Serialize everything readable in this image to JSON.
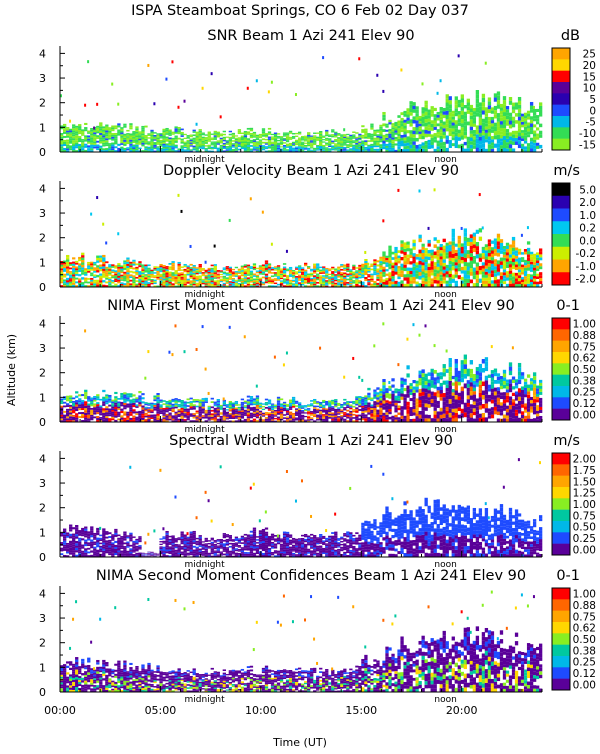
{
  "header": {
    "line1": "ISPA Steamboat Springs, CO    6 Feb 02 Day 037"
  },
  "y_axis_label": "Altitude (km)",
  "x_axis": {
    "label": "Time (UT)",
    "ticks": [
      "00:00",
      "05:00",
      "10:00",
      "15:00",
      "20:00"
    ],
    "tick_hours": [
      0,
      5,
      10,
      15,
      20
    ],
    "range_hours": [
      0,
      24
    ],
    "markers": [
      {
        "label": "midnight",
        "hour": 7.2
      },
      {
        "label": "noon",
        "hour": 19.2
      }
    ]
  },
  "chart_data": [
    {
      "type": "heatmap",
      "title": "SNR Beam 1 Azi 241 Elev 90",
      "unit": "dB",
      "ylim": [
        0,
        4.3
      ],
      "y_ticks": [
        "0",
        "1",
        "2",
        "3",
        "4"
      ],
      "colorbar_labels": [
        "25",
        "20",
        "15",
        "10",
        "5",
        "0",
        "-5",
        "-10",
        "-15"
      ],
      "colors": [
        "#ffa500",
        "#ffd700",
        "#ff0000",
        "#5a0099",
        "#2a00b0",
        "#1e4bff",
        "#00b8e8",
        "#33dd55",
        "#88ee22"
      ],
      "top_heights": [
        1.1,
        1.2,
        1.15,
        1.1,
        1.0,
        0.95,
        0.9,
        0.85,
        0.85,
        0.9,
        0.9,
        0.85,
        0.8,
        0.85,
        0.9,
        1.1,
        1.5,
        1.9,
        2.0,
        2.2,
        2.3,
        2.3,
        2.1,
        1.9
      ]
    },
    {
      "type": "heatmap",
      "title": "Doppler Velocity Beam 1 Azi 241 Elev 90",
      "unit": "m/s",
      "ylim": [
        0,
        4.3
      ],
      "y_ticks": [
        "0",
        "1",
        "2",
        "3",
        "4"
      ],
      "colorbar_labels": [
        "5.0",
        "2.0",
        "1.0",
        "0.2",
        "0.0",
        "-0.2",
        "-1.0",
        "-2.0"
      ],
      "colors": [
        "#000000",
        "#2a00b0",
        "#1e4bff",
        "#00c8f0",
        "#33dd55",
        "#ccee00",
        "#ffa500",
        "#ff0000"
      ],
      "top_heights": [
        1.2,
        1.3,
        1.2,
        1.1,
        1.0,
        1.0,
        0.9,
        0.9,
        0.9,
        1.0,
        1.0,
        0.9,
        0.9,
        0.9,
        1.0,
        1.2,
        1.6,
        2.0,
        2.1,
        2.2,
        2.3,
        2.2,
        2.0,
        1.8
      ]
    },
    {
      "type": "heatmap",
      "title": "NIMA First Moment Confidences Beam 1 Azi 241 Elev 90",
      "unit": "0-1",
      "ylim": [
        0,
        4.3
      ],
      "y_ticks": [
        "0",
        "1",
        "2",
        "3",
        "4"
      ],
      "colorbar_labels": [
        "1.00",
        "0.88",
        "0.75",
        "0.62",
        "0.50",
        "0.38",
        "0.25",
        "0.12",
        "0.00"
      ],
      "colors": [
        "#ff0000",
        "#ff6600",
        "#ffa500",
        "#ffd700",
        "#88ee22",
        "#00c8a0",
        "#00b8e8",
        "#1e4bff",
        "#5a0099"
      ],
      "top_heights": [
        1.2,
        1.3,
        1.2,
        1.2,
        1.1,
        1.0,
        0.95,
        0.9,
        0.9,
        1.0,
        1.0,
        0.95,
        0.9,
        0.9,
        1.0,
        1.3,
        1.7,
        2.1,
        2.2,
        2.4,
        2.5,
        2.4,
        2.2,
        2.0
      ]
    },
    {
      "type": "heatmap",
      "title": "Spectral Width Beam 1 Azi 241 Elev 90",
      "unit": "m/s",
      "ylim": [
        0,
        4.3
      ],
      "y_ticks": [
        "0",
        "1",
        "2",
        "3",
        "4"
      ],
      "colorbar_labels": [
        "2.00",
        "1.75",
        "1.50",
        "1.25",
        "1.00",
        "0.75",
        "0.50",
        "0.25",
        "0.00"
      ],
      "colors": [
        "#ff0000",
        "#ff6600",
        "#ffa500",
        "#ffd700",
        "#88ee22",
        "#00c8a0",
        "#00b8e8",
        "#1e4bff",
        "#5a0099"
      ],
      "top_heights": [
        1.2,
        1.3,
        1.1,
        1.0,
        0.2,
        1.0,
        1.0,
        0.9,
        0.9,
        1.1,
        1.1,
        1.0,
        0.9,
        1.0,
        1.1,
        1.6,
        1.9,
        2.1,
        2.2,
        2.3,
        2.2,
        2.1,
        1.9,
        1.6
      ]
    },
    {
      "type": "heatmap",
      "title": "NIMA Second Moment Confidences Beam 1 Azi 241 Elev 90",
      "unit": "0-1",
      "ylim": [
        0,
        4.3
      ],
      "y_ticks": [
        "0",
        "1",
        "2",
        "3",
        "4"
      ],
      "colorbar_labels": [
        "1.00",
        "0.88",
        "0.75",
        "0.62",
        "0.50",
        "0.38",
        "0.25",
        "0.12",
        "0.00"
      ],
      "colors": [
        "#ff0000",
        "#ff6600",
        "#ffa500",
        "#ffd700",
        "#88ee22",
        "#00c8a0",
        "#00b8e8",
        "#1e4bff",
        "#5a0099"
      ],
      "top_heights": [
        1.3,
        1.3,
        1.2,
        1.2,
        1.1,
        1.0,
        0.95,
        0.9,
        0.9,
        1.0,
        1.0,
        0.95,
        0.9,
        0.9,
        1.0,
        1.4,
        1.8,
        2.1,
        2.2,
        2.4,
        2.5,
        2.4,
        2.2,
        2.0
      ]
    }
  ]
}
